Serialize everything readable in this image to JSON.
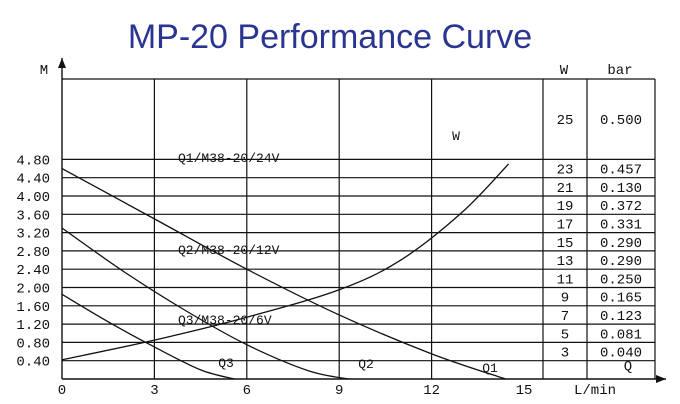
{
  "chart_data": {
    "type": "line",
    "title": "MP-20 Performance Curve",
    "ylabel": "M",
    "xlabel": "L/min",
    "x_ticks": [
      "0",
      "3",
      "6",
      "9",
      "12",
      "15"
    ],
    "y_ticks": [
      "0.40",
      "0.80",
      "1.20",
      "1.60",
      "2.00",
      "2.40",
      "2.80",
      "3.20",
      "3.60",
      "4.00",
      "4.40",
      "4.80"
    ],
    "xlim": [
      0,
      15
    ],
    "ylim": [
      0,
      5.2
    ],
    "series": [
      {
        "name": "Q1/M38-20/24V",
        "end_label": "Q1",
        "x": [
          0,
          3,
          6,
          9,
          12,
          14.4
        ],
        "y": [
          4.6,
          3.5,
          2.4,
          1.4,
          0.55,
          0.0
        ]
      },
      {
        "name": "Q2/M38-20/12V",
        "end_label": "Q2",
        "x": [
          0,
          2,
          4,
          6,
          8,
          9.3
        ],
        "y": [
          3.3,
          2.35,
          1.5,
          0.75,
          0.18,
          0.0
        ]
      },
      {
        "name": "Q3/M38-20/6V",
        "end_label": "Q3",
        "x": [
          0,
          1.5,
          3,
          4.5,
          5.6
        ],
        "y": [
          1.85,
          1.25,
          0.7,
          0.2,
          0.0
        ]
      },
      {
        "name": "W",
        "end_label": "W",
        "x": [
          0,
          3,
          6,
          9,
          11,
          13,
          14.5
        ],
        "y": [
          0.42,
          0.85,
          1.35,
          1.95,
          2.6,
          3.65,
          4.7
        ]
      }
    ],
    "table": {
      "headers": [
        "W",
        "bar"
      ],
      "footer": "Q",
      "rows": [
        [
          "25",
          "0.500"
        ],
        [
          "23",
          "0.457"
        ],
        [
          "21",
          "0.130"
        ],
        [
          "19",
          "0.372"
        ],
        [
          "17",
          "0.331"
        ],
        [
          "15",
          "0.290"
        ],
        [
          "13",
          "0.290"
        ],
        [
          "11",
          "0.250"
        ],
        [
          "9",
          "0.165"
        ],
        [
          "7",
          "0.123"
        ],
        [
          "5",
          "0.081"
        ],
        [
          "3",
          "0.040"
        ]
      ]
    }
  }
}
